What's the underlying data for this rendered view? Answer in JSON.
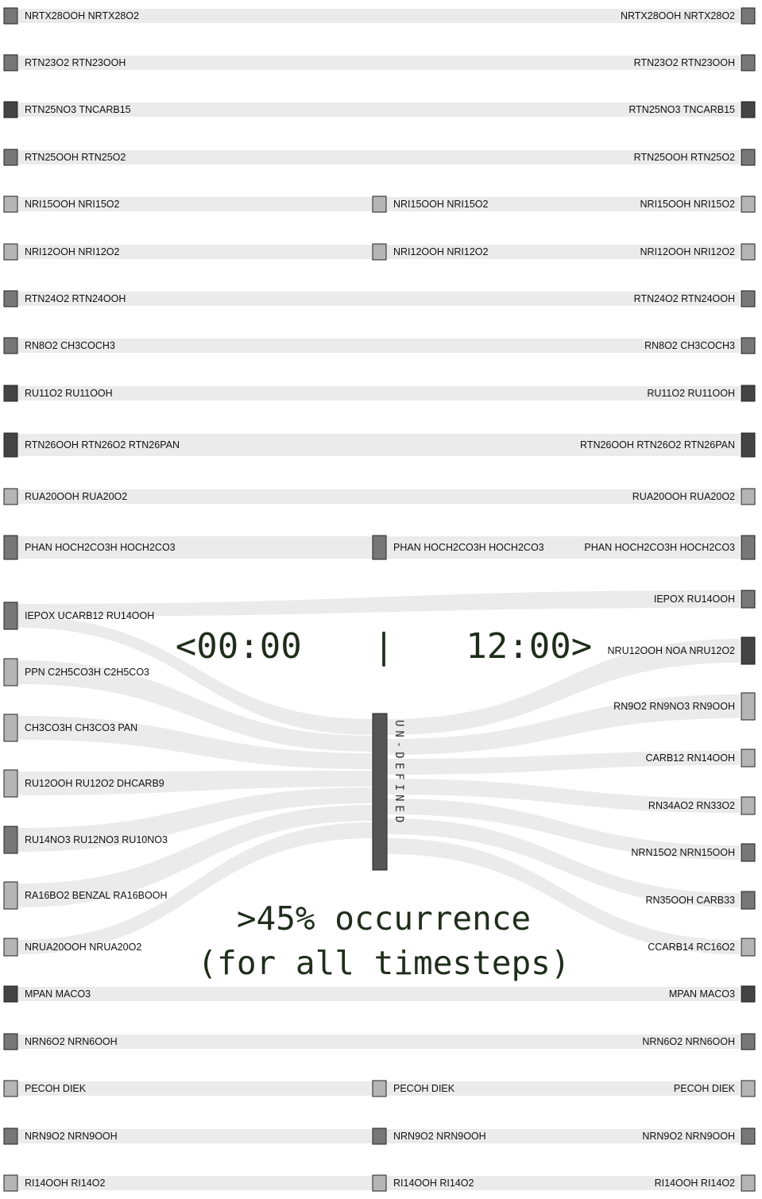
{
  "time_header": {
    "start": "<00:00",
    "divider": "|",
    "end": "12:00>"
  },
  "caption": {
    "line1": ">45% occurrence",
    "line2": "(for all timesteps)"
  },
  "center_node": {
    "label": "UN-DEFINED",
    "color": "#555555"
  },
  "colors": {
    "flow": "#ebebeb",
    "node_dark": "#444444",
    "node_mid": "#777777",
    "node_light": "#b5b5b5"
  },
  "rows_top": [
    {
      "label": "NRTX28OOH NRTX28O2",
      "shade": "mid",
      "middle": false
    },
    {
      "label": "RTN23O2 RTN23OOH",
      "shade": "mid",
      "middle": false
    },
    {
      "label": "RTN25NO3 TNCARB15",
      "shade": "dark",
      "middle": false
    },
    {
      "label": "RTN25OOH RTN25O2",
      "shade": "mid",
      "middle": false
    },
    {
      "label": "NRI15OOH NRI15O2",
      "shade": "light",
      "middle": true
    },
    {
      "label": "NRI12OOH NRI12O2",
      "shade": "light",
      "middle": true
    },
    {
      "label": "RTN24O2 RTN24OOH",
      "shade": "mid",
      "middle": false
    },
    {
      "label": "RN8O2 CH3COCH3",
      "shade": "mid",
      "middle": false
    },
    {
      "label": "RU11O2 RU11OOH",
      "shade": "dark",
      "middle": false
    },
    {
      "label": "RTN26OOH RTN26O2 RTN26PAN",
      "shade": "dark",
      "middle": false
    },
    {
      "label": "RUA20OOH RUA20O2",
      "shade": "light",
      "middle": false
    },
    {
      "label": "PHAN HOCH2CO3H HOCH2CO3",
      "shade": "mid",
      "middle": true
    }
  ],
  "rows_bottom": [
    {
      "label": "MPAN MACO3",
      "shade": "dark",
      "middle": false
    },
    {
      "label": "NRN6O2 NRN6OOH",
      "shade": "mid",
      "middle": false
    },
    {
      "label": "PECOH DIEK",
      "shade": "light",
      "middle": true
    },
    {
      "label": "NRN9O2 NRN9OOH",
      "shade": "mid",
      "middle": true
    },
    {
      "label": "RI14OOH RI14O2",
      "shade": "light",
      "middle": true
    }
  ],
  "left_nodes": [
    {
      "label": "IEPOX UCARB12 RU14OOH",
      "shade": "mid"
    },
    {
      "label": "PPN C2H5CO3H C2H5CO3",
      "shade": "light"
    },
    {
      "label": "CH3CO3H CH3CO3 PAN",
      "shade": "light"
    },
    {
      "label": "RU12OOH RU12O2 DHCARB9",
      "shade": "light"
    },
    {
      "label": "RU14NO3 RU12NO3 RU10NO3",
      "shade": "mid"
    },
    {
      "label": "RA16BO2 BENZAL RA16BOOH",
      "shade": "light"
    },
    {
      "label": "NRUA20OOH NRUA20O2",
      "shade": "light"
    }
  ],
  "right_nodes": [
    {
      "label": "IEPOX RU14OOH",
      "shade": "mid"
    },
    {
      "label": "NRU12OOH NOA NRU12O2",
      "shade": "dark"
    },
    {
      "label": "RN9O2 RN9NO3 RN9OOH",
      "shade": "light"
    },
    {
      "label": "CARB12 RN14OOH",
      "shade": "light"
    },
    {
      "label": "RN34AO2 RN33O2",
      "shade": "light"
    },
    {
      "label": "NRN15O2 NRN15OOH",
      "shade": "mid"
    },
    {
      "label": "RN35OOH CARB33",
      "shade": "mid"
    },
    {
      "label": "CCARB14 RC16O2",
      "shade": "light"
    }
  ]
}
